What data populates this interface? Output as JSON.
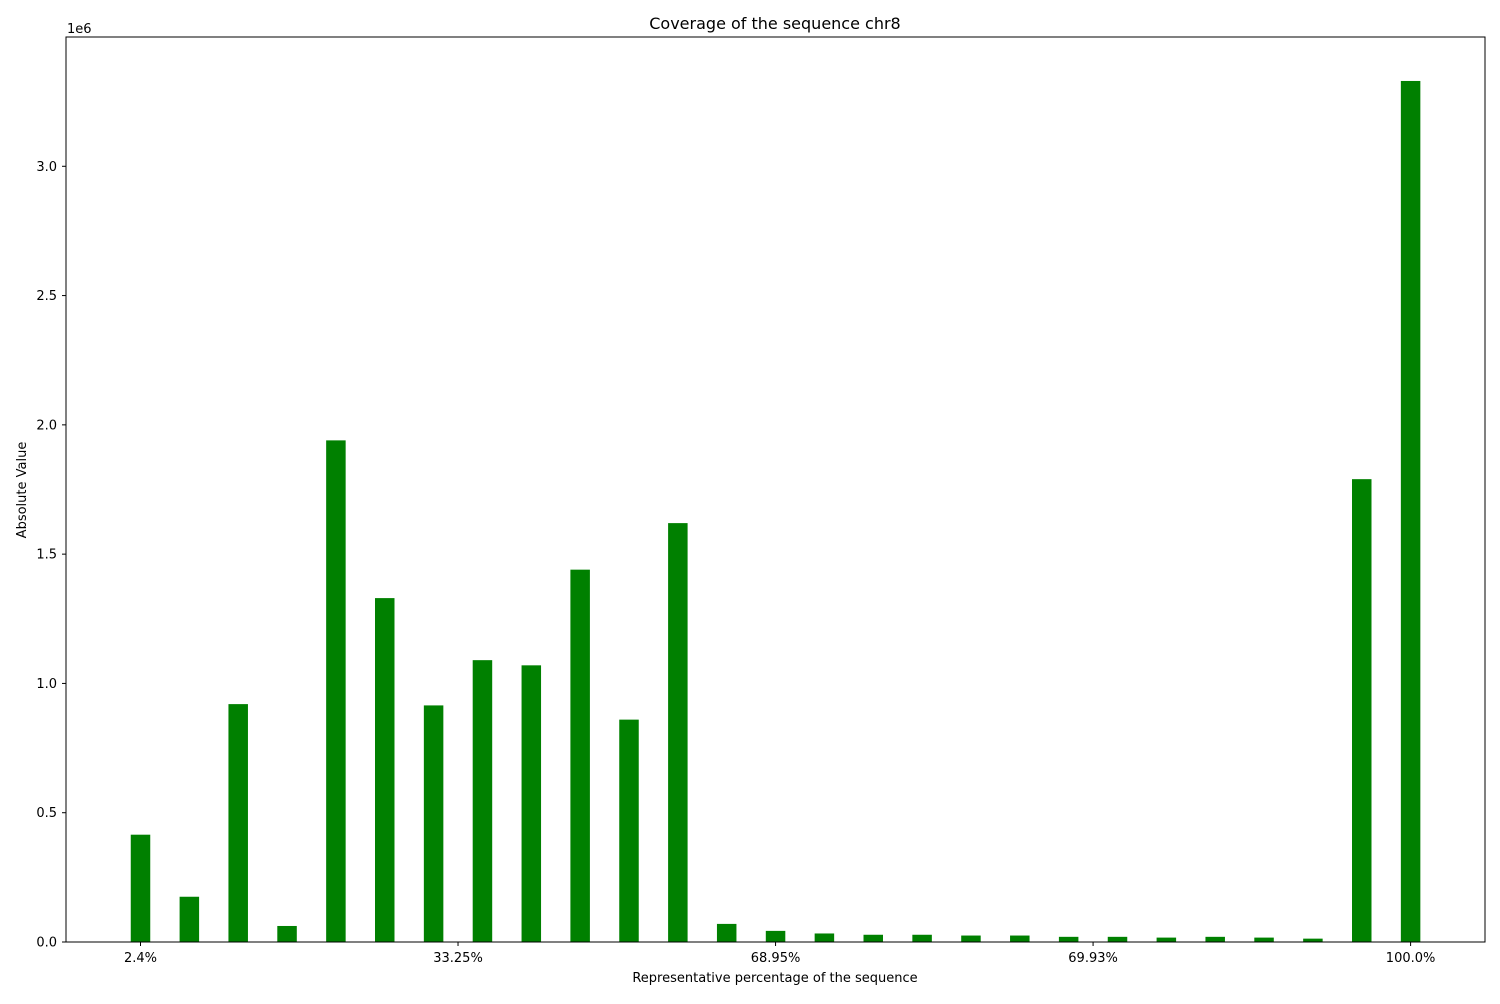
{
  "chart_data": {
    "type": "bar",
    "title": "Coverage of the sequence chr8",
    "xlabel": "Representative percentage of the sequence",
    "ylabel": "Absolute Value",
    "y_offset_label": "1e6",
    "ylim": [
      0,
      3500000
    ],
    "y_ticks": [
      0,
      500000,
      1000000,
      1500000,
      2000000,
      2500000,
      3000000
    ],
    "y_tick_labels": [
      "0.0",
      "0.5",
      "1.0",
      "1.5",
      "2.0",
      "2.5",
      "3.0"
    ],
    "x_tick_labels": [
      {
        "bar_index": 0,
        "label": "2.4%"
      },
      {
        "bar_index": 6.5,
        "label": "33.25%"
      },
      {
        "bar_index": 13,
        "label": "68.95%"
      },
      {
        "bar_index": 19.5,
        "label": "69.93%"
      },
      {
        "bar_index": 26,
        "label": "100.0%"
      }
    ],
    "values": [
      415000,
      175000,
      920000,
      62000,
      1940000,
      1330000,
      915000,
      1090000,
      1070000,
      1440000,
      860000,
      1620000,
      70000,
      43000,
      33000,
      28000,
      28000,
      25000,
      25000,
      20000,
      20000,
      17000,
      20000,
      17000,
      13000,
      1790000,
      3330000
    ],
    "bar_color": "#008000",
    "grid": false,
    "legend": "none"
  }
}
